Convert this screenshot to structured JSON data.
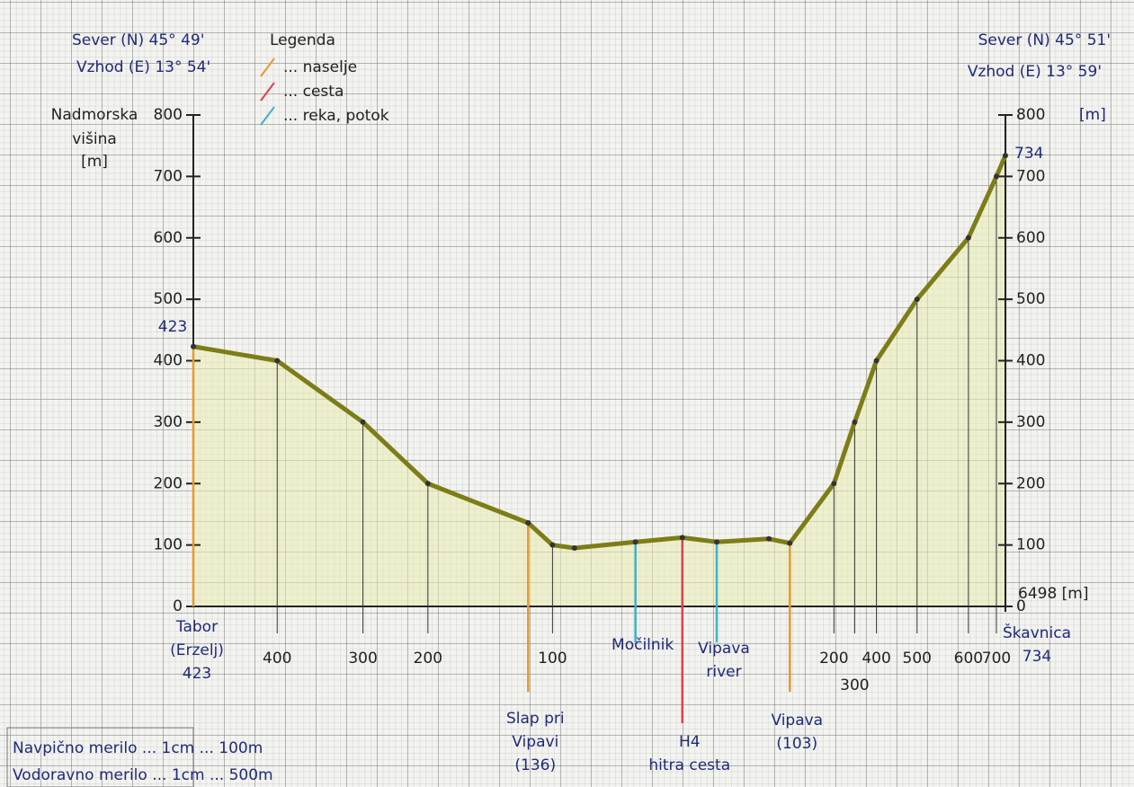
{
  "chart_data": {
    "type": "line",
    "coords": {
      "start": [
        "Sever (N) 45° 49'",
        "Vzhod (E) 13° 54'"
      ],
      "end": [
        "Sever (N) 45° 51'",
        "Vzhod (E) 13° 59'"
      ]
    },
    "legend": {
      "title": "Legenda",
      "items": [
        {
          "label": "... naselje",
          "color": "#e59a2c"
        },
        {
          "label": "... cesta",
          "color": "#e0404a"
        },
        {
          "label": "... reka, potok",
          "color": "#3fb2c8"
        }
      ]
    },
    "y_label": [
      "Nadmorska",
      "višina",
      "[m]"
    ],
    "y2_unit": "[m]",
    "x": [
      0,
      671,
      1357,
      1877,
      2679,
      2874,
      3050,
      3538,
      3913,
      4188,
      4606,
      4773,
      5126,
      5292,
      5466,
      5791,
      6202,
      6426,
      6498
    ],
    "values": [
      423,
      400,
      300,
      200,
      136,
      100,
      95,
      105,
      112,
      105,
      110,
      103,
      200,
      300,
      400,
      500,
      600,
      700,
      734
    ],
    "color": "#7d7d18",
    "fill": "#e9ebb0",
    "xlim": [
      0,
      6498
    ],
    "xticks": [
      {
        "value": 6498,
        "label": "6498 [m]"
      }
    ],
    "ylim": [
      0,
      800
    ],
    "yticks": [
      0,
      100,
      200,
      300,
      400,
      500,
      600,
      700,
      800
    ],
    "places": [
      {
        "x": 0,
        "color": "#e59a2c",
        "lines": [
          "Tabor",
          "(Erzelj)",
          "423"
        ]
      },
      {
        "x": 2679,
        "color": "#e59a2c",
        "lines": [
          "Slap pri",
          "Vipavi",
          "(136)"
        ]
      },
      {
        "x": 3538,
        "color": "#3fb2c8",
        "lines": [
          "Močilnik"
        ]
      },
      {
        "x": 3913,
        "color": "#e0404a",
        "lines": [
          "H4",
          "hitra cesta"
        ]
      },
      {
        "x": 4188,
        "color": "#3fb2c8",
        "lines": [
          "Vipava",
          "river"
        ]
      },
      {
        "x": 4773,
        "color": "#e59a2c",
        "lines": [
          "Vipava",
          "(103)"
        ]
      },
      {
        "x": 6498,
        "color": null,
        "lines": [
          "Škavnica",
          "734"
        ]
      }
    ],
    "scales": [
      "Navpično merilo ... 1cm ... 100m",
      "Vodoravno merilo ... 1cm ... 500m"
    ]
  }
}
